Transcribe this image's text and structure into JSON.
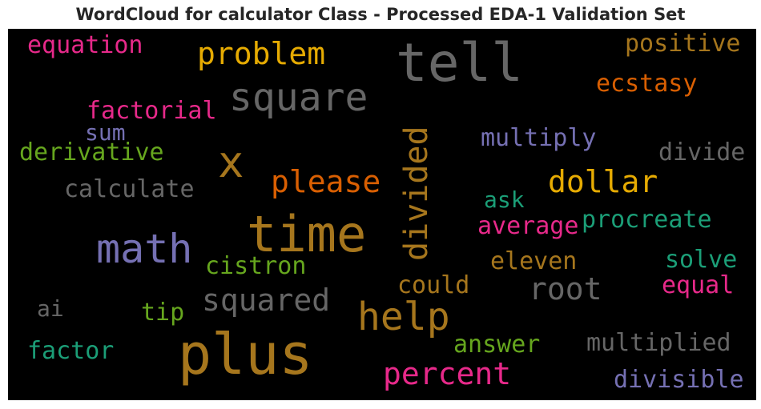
{
  "chart_data": {
    "type": "wordcloud",
    "title": "WordCloud for calculator Class - Processed EDA-1 Validation Set",
    "background": "#000000",
    "palette": {
      "grey": "#666666",
      "gold": "#a6761d",
      "amber": "#e6ab02",
      "orange": "#d95f02",
      "pink": "#e7298a",
      "purple": "#7570b3",
      "green": "#66a61e",
      "teal": "#1b9e77"
    },
    "words": [
      {
        "text": "tell",
        "color": "#666666"
      },
      {
        "text": "plus",
        "color": "#a6761d"
      },
      {
        "text": "time",
        "color": "#a6761d"
      },
      {
        "text": "square",
        "color": "#666666"
      },
      {
        "text": "math",
        "color": "#7570b3"
      },
      {
        "text": "x",
        "color": "#a6761d"
      },
      {
        "text": "help",
        "color": "#a6761d"
      },
      {
        "text": "divided",
        "color": "#a6761d"
      },
      {
        "text": "percent",
        "color": "#e7298a"
      },
      {
        "text": "problem",
        "color": "#e6ab02"
      },
      {
        "text": "please",
        "color": "#d95f02"
      },
      {
        "text": "dollar",
        "color": "#e6ab02"
      },
      {
        "text": "squared",
        "color": "#666666"
      },
      {
        "text": "root",
        "color": "#666666"
      },
      {
        "text": "equation",
        "color": "#e7298a"
      },
      {
        "text": "positive",
        "color": "#a6761d"
      },
      {
        "text": "ecstasy",
        "color": "#d95f02"
      },
      {
        "text": "factorial",
        "color": "#e7298a"
      },
      {
        "text": "sum",
        "color": "#7570b3"
      },
      {
        "text": "derivative",
        "color": "#66a61e"
      },
      {
        "text": "calculate",
        "color": "#666666"
      },
      {
        "text": "multiply",
        "color": "#7570b3"
      },
      {
        "text": "divide",
        "color": "#666666"
      },
      {
        "text": "ask",
        "color": "#1b9e77"
      },
      {
        "text": "average",
        "color": "#e7298a"
      },
      {
        "text": "procreate",
        "color": "#1b9e77"
      },
      {
        "text": "cistron",
        "color": "#66a61e"
      },
      {
        "text": "eleven",
        "color": "#a6761d"
      },
      {
        "text": "solve",
        "color": "#1b9e77"
      },
      {
        "text": "could",
        "color": "#a6761d"
      },
      {
        "text": "equal",
        "color": "#e7298a"
      },
      {
        "text": "ai",
        "color": "#666666"
      },
      {
        "text": "tip",
        "color": "#66a61e"
      },
      {
        "text": "answer",
        "color": "#66a61e"
      },
      {
        "text": "multiplied",
        "color": "#666666"
      },
      {
        "text": "factor",
        "color": "#1b9e77"
      },
      {
        "text": "divisible",
        "color": "#7570b3"
      }
    ]
  }
}
